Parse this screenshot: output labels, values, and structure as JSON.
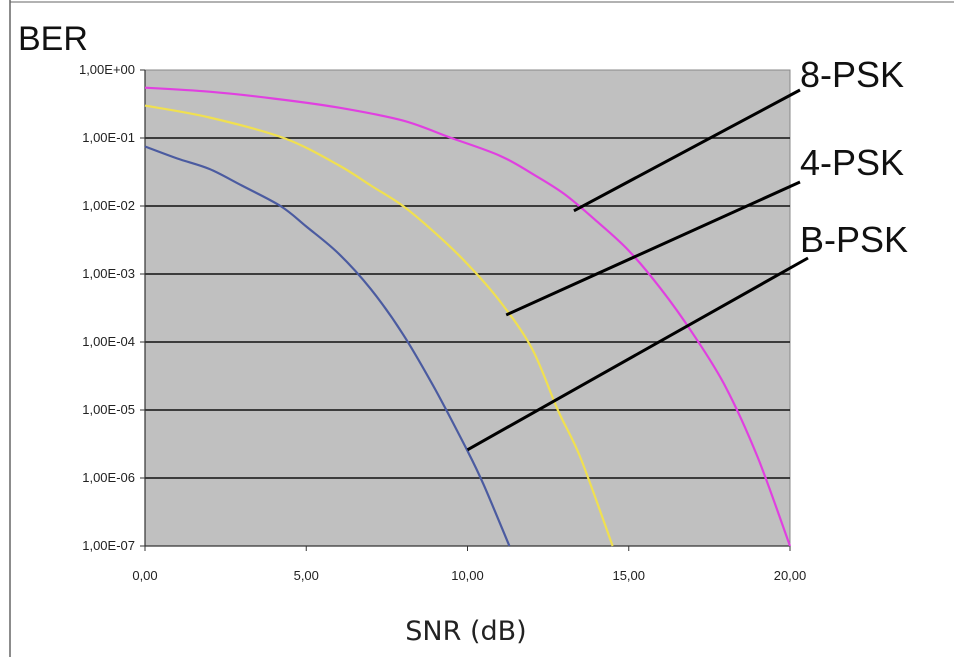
{
  "chart_data": {
    "type": "line",
    "title": "",
    "ylabel": "BER",
    "xlabel": "SNR (dB)",
    "yscale": "log",
    "xlim": [
      0,
      20
    ],
    "ylim": [
      1e-07,
      1
    ],
    "x_ticks": [
      0,
      5,
      10,
      15,
      20
    ],
    "x_tick_labels": [
      "0,00",
      "5,00",
      "10,00",
      "15,00",
      "20,00"
    ],
    "y_ticks": [
      1,
      0.1,
      0.01,
      0.001,
      0.0001,
      1e-05,
      1e-06,
      1e-07
    ],
    "y_tick_labels": [
      "1,00E+00",
      "1,00E-01",
      "1,00E-02",
      "1,00E-03",
      "1,00E-04",
      "1,00E-05",
      "1,00E-06",
      "1,00E-07"
    ],
    "grid": "horizontal",
    "plot_background": "#c0c0c0",
    "legend": "annotation labels with leader lines, right side",
    "series": [
      {
        "name": "8-PSK",
        "color": "#e040e0",
        "x": [
          0,
          2,
          4,
          6,
          8,
          9.5,
          11,
          12,
          13,
          14,
          15,
          16,
          17,
          18,
          19,
          20
        ],
        "y": [
          0.55,
          0.48,
          0.38,
          0.28,
          0.18,
          0.1,
          0.055,
          0.03,
          0.015,
          0.006,
          0.0022,
          0.0006,
          0.00013,
          2.2e-05,
          2e-06,
          1e-07
        ]
      },
      {
        "name": "4-PSK",
        "color": "#f0e050",
        "x": [
          0,
          2,
          4.3,
          6,
          7,
          8,
          9,
          10,
          11,
          12,
          12.8,
          13.5,
          14.5
        ],
        "y": [
          0.3,
          0.2,
          0.1,
          0.04,
          0.02,
          0.01,
          0.004,
          0.0014,
          0.0004,
          8e-05,
          1e-05,
          2e-06,
          1e-07
        ]
      },
      {
        "name": "B-PSK",
        "color": "#4b5ba0",
        "x": [
          0,
          1,
          2,
          3,
          4.2,
          5,
          6,
          7,
          8,
          9,
          10,
          10.5,
          11.3
        ],
        "y": [
          0.075,
          0.05,
          0.035,
          0.02,
          0.01,
          0.005,
          0.002,
          0.0006,
          0.00013,
          2e-05,
          2.5e-06,
          8e-07,
          1e-07
        ]
      }
    ],
    "annotations": [
      {
        "label": "8-PSK",
        "target_x": 13.3,
        "target_y": 0.0085
      },
      {
        "label": "4-PSK",
        "target_x": 11.2,
        "target_y": 0.00025
      },
      {
        "label": "B-PSK",
        "target_x": 10.0,
        "target_y": 2.6e-06
      }
    ]
  }
}
